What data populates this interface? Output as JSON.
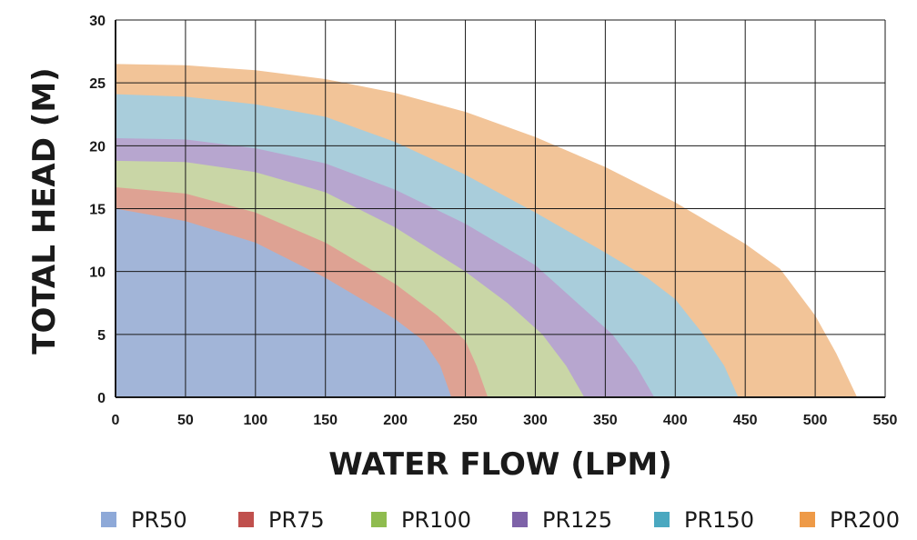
{
  "chart_data": {
    "type": "area",
    "xlabel": "WATER FLOW (LPM)",
    "ylabel": "TOTAL HEAD (M)",
    "xlim": [
      0,
      550
    ],
    "ylim": [
      0,
      30
    ],
    "x_ticks": [
      0,
      50,
      100,
      150,
      200,
      250,
      300,
      350,
      400,
      450,
      500,
      550
    ],
    "y_ticks": [
      0,
      5,
      10,
      15,
      20,
      25,
      30
    ],
    "grid": true,
    "legend_position": "bottom",
    "series": [
      {
        "name": "PR200",
        "color": "#f2c498",
        "points": [
          [
            0,
            26.5
          ],
          [
            50,
            26.4
          ],
          [
            100,
            26.0
          ],
          [
            150,
            25.3
          ],
          [
            200,
            24.2
          ],
          [
            250,
            22.7
          ],
          [
            300,
            20.7
          ],
          [
            350,
            18.3
          ],
          [
            400,
            15.5
          ],
          [
            450,
            12.2
          ],
          [
            475,
            10.2
          ],
          [
            500,
            6.5
          ],
          [
            515,
            3.5
          ],
          [
            530,
            0
          ]
        ]
      },
      {
        "name": "PR150",
        "color": "#a9cddb",
        "points": [
          [
            0,
            24.1
          ],
          [
            50,
            23.9
          ],
          [
            100,
            23.3
          ],
          [
            150,
            22.3
          ],
          [
            200,
            20.3
          ],
          [
            250,
            17.7
          ],
          [
            300,
            14.7
          ],
          [
            350,
            11.5
          ],
          [
            380,
            9.5
          ],
          [
            400,
            7.8
          ],
          [
            420,
            5.0
          ],
          [
            435,
            2.5
          ],
          [
            445,
            0
          ]
        ]
      },
      {
        "name": "PR125",
        "color": "#b7a6cf",
        "points": [
          [
            0,
            20.6
          ],
          [
            50,
            20.5
          ],
          [
            100,
            19.8
          ],
          [
            150,
            18.6
          ],
          [
            200,
            16.5
          ],
          [
            250,
            13.8
          ],
          [
            300,
            10.5
          ],
          [
            330,
            7.5
          ],
          [
            355,
            5.0
          ],
          [
            372,
            2.5
          ],
          [
            385,
            0
          ]
        ]
      },
      {
        "name": "PR100",
        "color": "#c9d6a6",
        "points": [
          [
            0,
            18.8
          ],
          [
            50,
            18.7
          ],
          [
            100,
            17.9
          ],
          [
            150,
            16.3
          ],
          [
            200,
            13.5
          ],
          [
            250,
            10.0
          ],
          [
            280,
            7.5
          ],
          [
            305,
            5.0
          ],
          [
            322,
            2.5
          ],
          [
            335,
            0
          ]
        ]
      },
      {
        "name": "PR75",
        "color": "#dea293",
        "points": [
          [
            0,
            16.7
          ],
          [
            50,
            16.2
          ],
          [
            100,
            14.7
          ],
          [
            150,
            12.3
          ],
          [
            200,
            9.0
          ],
          [
            230,
            6.5
          ],
          [
            250,
            4.5
          ],
          [
            258,
            2.5
          ],
          [
            266,
            0
          ]
        ]
      },
      {
        "name": "PR50",
        "color": "#a2b5d8",
        "points": [
          [
            0,
            15.0
          ],
          [
            50,
            14.0
          ],
          [
            100,
            12.3
          ],
          [
            150,
            9.5
          ],
          [
            200,
            6.2
          ],
          [
            220,
            4.5
          ],
          [
            232,
            2.5
          ],
          [
            240,
            0
          ]
        ]
      }
    ],
    "legend": [
      {
        "name": "PR50",
        "color": "#8ea9d8"
      },
      {
        "name": "PR75",
        "color": "#c0504d"
      },
      {
        "name": "PR100",
        "color": "#8fbc4f"
      },
      {
        "name": "PR125",
        "color": "#7e62a8"
      },
      {
        "name": "PR150",
        "color": "#4aa8c0"
      },
      {
        "name": "PR200",
        "color": "#ee9a47"
      }
    ]
  }
}
